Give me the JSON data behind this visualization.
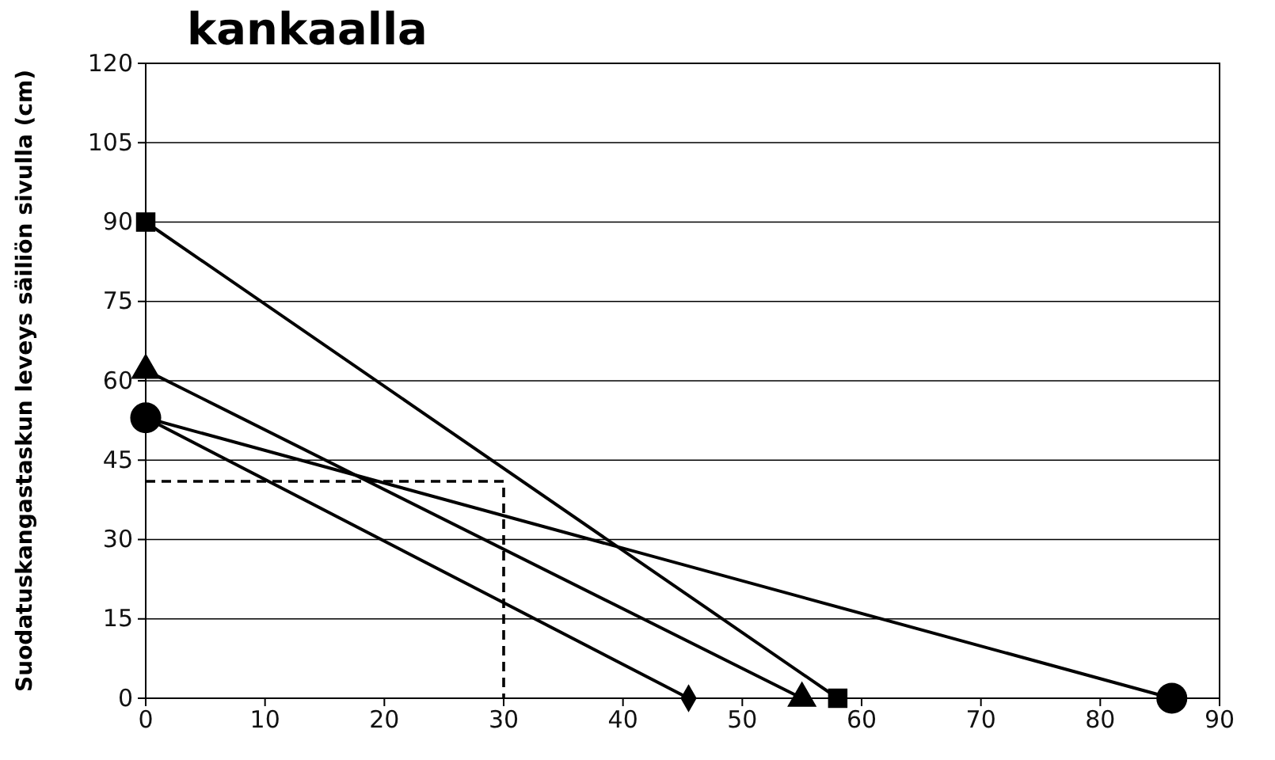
{
  "chart_data": {
    "type": "line",
    "title": "kankaalla",
    "ylabel": "Suodatuskangastaskun leveys säiliön sivulla (cm)",
    "xlim": [
      0,
      90
    ],
    "xticks": [
      0,
      10,
      20,
      30,
      40,
      50,
      60,
      70,
      80,
      90
    ],
    "ylim": [
      0,
      120
    ],
    "yticks": [
      0,
      15,
      30,
      45,
      60,
      75,
      90,
      105,
      120
    ],
    "grid": "y",
    "series": [
      {
        "color": "#000000",
        "marker": "square",
        "x": [
          0,
          58
        ],
        "values": [
          90,
          0
        ]
      },
      {
        "color": "#000000",
        "marker": "triangle",
        "x": [
          0,
          55
        ],
        "values": [
          62,
          0
        ]
      },
      {
        "color": "#000000",
        "marker": "circle",
        "x": [
          0,
          86
        ],
        "values": [
          53,
          0
        ]
      },
      {
        "color": "#000000",
        "marker": "diamond",
        "x": [
          0,
          45.5
        ],
        "values": [
          53,
          0
        ]
      },
      {
        "color": "#000000",
        "marker": "none",
        "line_style": "dashed",
        "x": [
          0,
          30,
          30
        ],
        "values": [
          41,
          41,
          0
        ]
      }
    ]
  }
}
